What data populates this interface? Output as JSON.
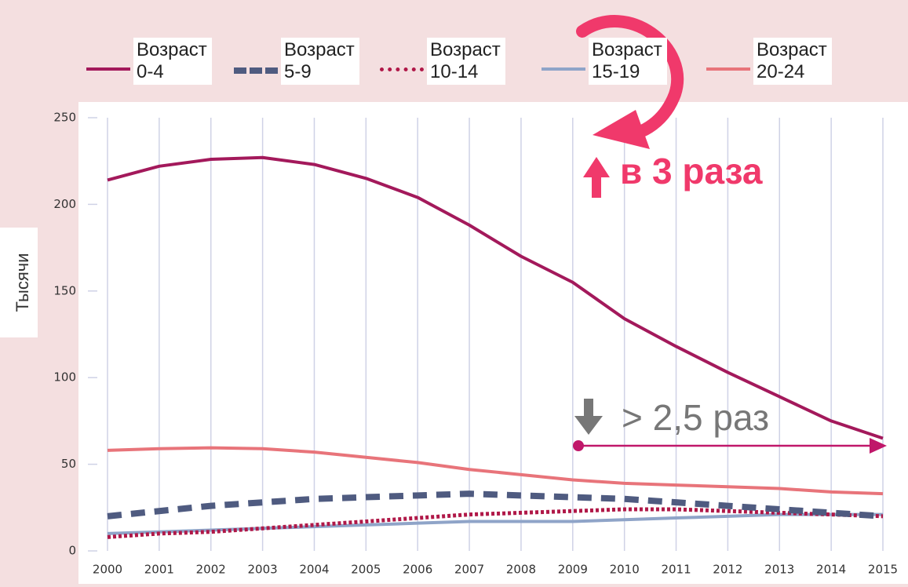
{
  "chart_data": {
    "type": "line",
    "y_label": "Тысячи",
    "x": [
      2000,
      2001,
      2002,
      2003,
      2004,
      2005,
      2006,
      2007,
      2008,
      2009,
      2010,
      2011,
      2012,
      2013,
      2014,
      2015
    ],
    "xlim": [
      2000,
      2015
    ],
    "xticks": [
      2000,
      2001,
      2002,
      2003,
      2004,
      2005,
      2006,
      2007,
      2008,
      2009,
      2010,
      2011,
      2012,
      2013,
      2014,
      2015
    ],
    "ylim": [
      0,
      250
    ],
    "yticks": [
      0,
      50,
      100,
      150,
      200,
      250
    ],
    "grid": true,
    "annotations": [
      "в 3 раза",
      "> 2,5 раз"
    ],
    "series": [
      {
        "name": "Возраст 0-4",
        "color": "#a3195b",
        "style": "solid",
        "values": [
          214,
          222,
          226,
          227,
          223,
          215,
          204,
          188,
          170,
          155,
          134,
          118,
          103,
          89,
          75,
          65
        ]
      },
      {
        "name": "Возраст 5-9",
        "color": "#4f5b80",
        "style": "dashed",
        "values": [
          20,
          23,
          26,
          28,
          30,
          31,
          32,
          33,
          32,
          31,
          30,
          28,
          26,
          24,
          22,
          20
        ]
      },
      {
        "name": "Возраст 10-14",
        "color": "#b01848",
        "style": "dotted",
        "values": [
          8,
          10,
          11,
          13,
          15,
          17,
          19,
          21,
          22,
          23,
          24,
          24,
          23,
          22,
          21,
          20
        ]
      },
      {
        "name": "Возраст 15-19",
        "color": "#8fa4c8",
        "style": "solid",
        "values": [
          10,
          11,
          12,
          13,
          14,
          15,
          16,
          17,
          17,
          17,
          18,
          19,
          20,
          21,
          21,
          21
        ]
      },
      {
        "name": "Возраст 20-24",
        "color": "#e8747a",
        "style": "solid",
        "values": [
          58,
          59,
          59.5,
          59,
          57,
          54,
          51,
          47,
          44,
          41,
          39,
          38,
          37,
          36,
          34,
          33
        ]
      }
    ]
  }
}
